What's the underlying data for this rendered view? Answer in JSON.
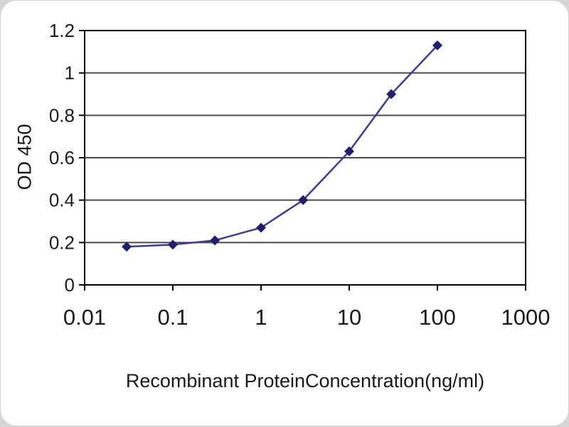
{
  "figure": {
    "page_background": "#d6d6d6",
    "background": "#ffffff"
  },
  "chart_data": {
    "type": "line",
    "title": "",
    "xlabel": "Recombinant ProteinConcentration(ng/ml)",
    "ylabel": "OD 450",
    "x_scale": "log",
    "xlim": [
      0.01,
      1000
    ],
    "ylim": [
      0,
      1.2
    ],
    "x": [
      0.03,
      0.1,
      0.3,
      1,
      3,
      10,
      30,
      100
    ],
    "y": [
      0.18,
      0.19,
      0.21,
      0.27,
      0.4,
      0.63,
      0.9,
      1.13
    ],
    "x_ticks": [
      0.01,
      0.1,
      1,
      10,
      100,
      1000
    ],
    "x_tick_labels": [
      "0.01",
      "0.1",
      "1",
      "10",
      "100",
      "1000"
    ],
    "y_ticks": [
      0,
      0.2,
      0.4,
      0.6,
      0.8,
      1,
      1.2
    ],
    "y_tick_labels": [
      "0",
      "0.2",
      "0.4",
      "0.6",
      "0.8",
      "1",
      "1.2"
    ],
    "grid": "horizontal",
    "legend": "none",
    "line_color": "#3a3aa0",
    "marker": "diamond",
    "marker_color": "#1f1f6e",
    "axis_color": "#000000",
    "grid_color": "#4a4a4a"
  }
}
